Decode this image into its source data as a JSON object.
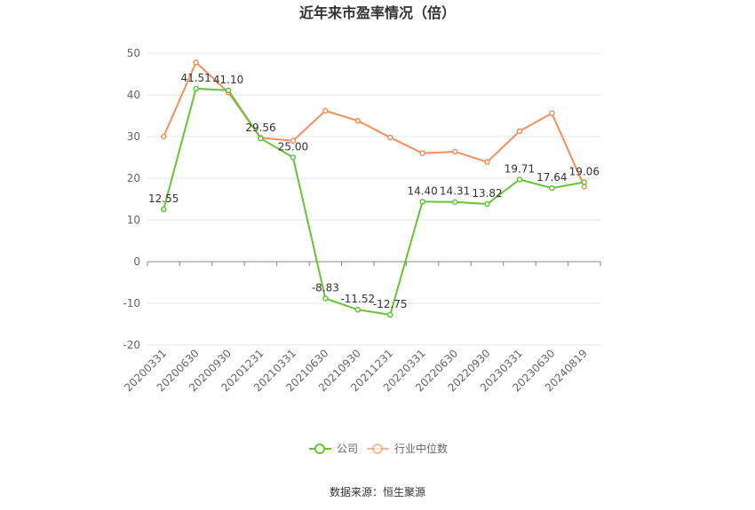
{
  "chart_data": {
    "type": "line",
    "title": "近年来市盈率情况（倍）",
    "categories": [
      "20200331",
      "20200630",
      "20200930",
      "20201231",
      "20210331",
      "20210630",
      "20210930",
      "20211231",
      "20220331",
      "20220630",
      "20220930",
      "20230331",
      "20230630",
      "20240819"
    ],
    "series": [
      {
        "name": "公司",
        "color": "#67c23a",
        "values": [
          12.55,
          41.51,
          41.1,
          29.56,
          25.0,
          -8.83,
          -11.52,
          -12.75,
          14.4,
          14.31,
          13.82,
          19.71,
          17.64,
          19.06
        ],
        "labels": [
          "12.55",
          "41.51",
          "41.10",
          "29.56",
          "25.00",
          "-8.83",
          "-11.52",
          "-12.75",
          "14.40",
          "14.31",
          "13.82",
          "19.71",
          "17.64",
          "19.06"
        ]
      },
      {
        "name": "行业中位数",
        "color": "#f0905e",
        "values": [
          30.0,
          47.8,
          40.6,
          29.7,
          29.0,
          36.2,
          33.8,
          29.8,
          26.0,
          26.4,
          23.9,
          31.3,
          35.6,
          18.0
        ]
      }
    ],
    "yticks": [
      "50",
      "40",
      "30",
      "20",
      "10",
      "0",
      "-10",
      "-20"
    ],
    "ylim": [
      -20,
      50
    ],
    "grid": true,
    "legend": "bottom-center",
    "source": "数据来源：恒生聚源"
  }
}
